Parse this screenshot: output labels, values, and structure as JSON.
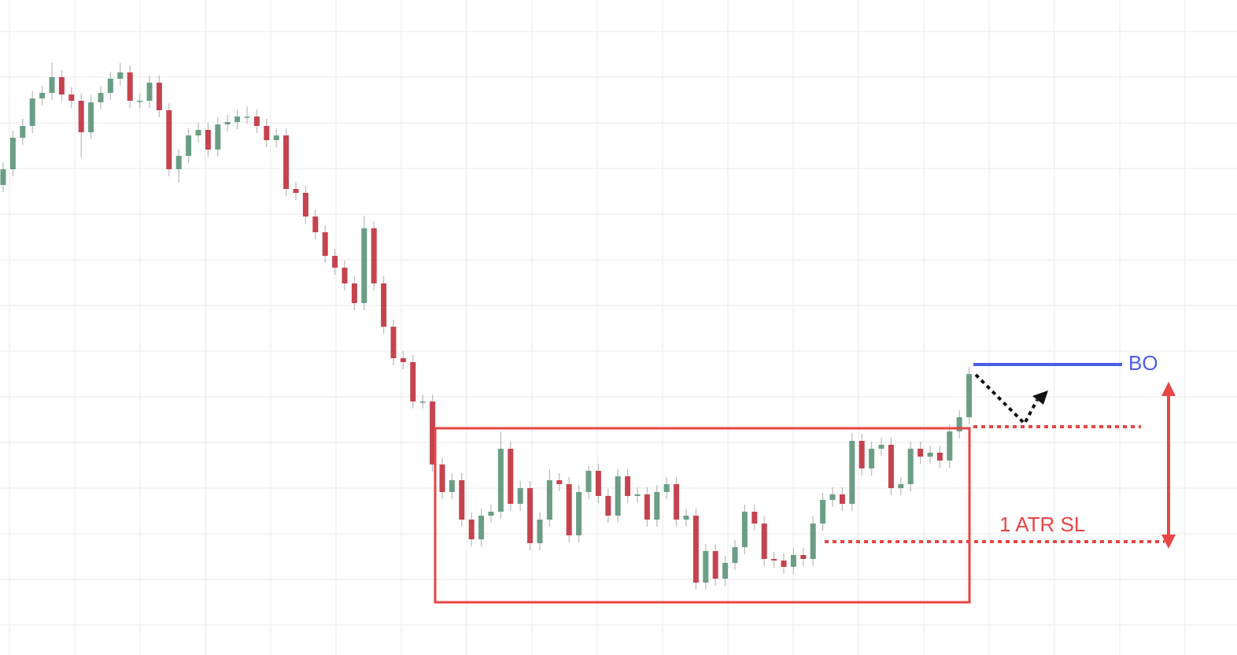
{
  "chart_data": {
    "type": "candlestick",
    "ylim": [
      0,
      832
    ],
    "grid": true,
    "up_color": "#6b9e85",
    "down_color": "#c5434f",
    "open": [
      597,
      617,
      657,
      672,
      707,
      714,
      734,
      712,
      704,
      664,
      702,
      714,
      732,
      740,
      704,
      704,
      727,
      692,
      617,
      634,
      660,
      667,
      642,
      674,
      677,
      684,
      684,
      672,
      654,
      660,
      592,
      587,
      557,
      537,
      507,
      492,
      472,
      447,
      542,
      472,
      417,
      377,
      372,
      322,
      322,
      242,
      207,
      222,
      172,
      147,
      177,
      182,
      262,
      192,
      212,
      142,
      172,
      222,
      217,
      152,
      207,
      234,
      202,
      177,
      227,
      202,
      204,
      172,
      207,
      217,
      172,
      177,
      92,
      132,
      97,
      117,
      137,
      182,
      167,
      122,
      120,
      112,
      127,
      122,
      167,
      197,
      204,
      192,
      272,
      237,
      262,
      267,
      212,
      217,
      262,
      252,
      257,
      247,
      284,
      302
    ],
    "high": [
      626,
      666,
      681,
      716,
      723,
      752,
      743,
      721,
      713,
      711,
      723,
      741,
      752,
      749,
      713,
      736,
      736,
      701,
      643,
      669,
      676,
      676,
      683,
      686,
      693,
      697,
      693,
      681,
      669,
      669,
      601,
      596,
      566,
      546,
      516,
      501,
      481,
      558,
      551,
      481,
      426,
      386,
      381,
      331,
      331,
      251,
      231,
      231,
      181,
      186,
      191,
      284,
      271,
      221,
      221,
      181,
      236,
      231,
      226,
      216,
      240,
      243,
      211,
      236,
      236,
      213,
      213,
      216,
      226,
      226,
      186,
      186,
      141,
      141,
      126,
      146,
      191,
      191,
      176,
      131,
      129,
      136,
      136,
      176,
      206,
      213,
      213,
      282,
      281,
      271,
      276,
      276,
      226,
      271,
      271,
      266,
      266,
      293,
      311,
      366
    ],
    "low": [
      588,
      608,
      648,
      663,
      698,
      705,
      703,
      695,
      632,
      655,
      693,
      705,
      723,
      695,
      695,
      695,
      683,
      608,
      600,
      625,
      651,
      633,
      633,
      665,
      668,
      675,
      663,
      645,
      645,
      583,
      578,
      548,
      528,
      498,
      483,
      463,
      438,
      438,
      463,
      408,
      368,
      363,
      313,
      313,
      233,
      198,
      198,
      163,
      138,
      138,
      168,
      173,
      183,
      183,
      133,
      133,
      163,
      208,
      143,
      143,
      198,
      193,
      168,
      168,
      193,
      193,
      163,
      163,
      198,
      163,
      163,
      83,
      83,
      88,
      88,
      108,
      128,
      158,
      113,
      111,
      103,
      103,
      113,
      113,
      158,
      188,
      183,
      183,
      228,
      228,
      253,
      203,
      203,
      208,
      243,
      243,
      238,
      238,
      275,
      293
    ],
    "close": [
      617,
      657,
      672,
      707,
      714,
      734,
      712,
      704,
      664,
      702,
      714,
      732,
      740,
      704,
      704,
      727,
      692,
      617,
      634,
      660,
      667,
      642,
      674,
      677,
      684,
      684,
      672,
      654,
      660,
      592,
      587,
      557,
      537,
      507,
      492,
      472,
      447,
      542,
      472,
      417,
      377,
      372,
      322,
      322,
      242,
      207,
      222,
      172,
      147,
      177,
      182,
      262,
      192,
      212,
      142,
      172,
      222,
      217,
      152,
      207,
      234,
      202,
      177,
      227,
      202,
      204,
      172,
      207,
      217,
      172,
      177,
      92,
      132,
      97,
      117,
      137,
      182,
      167,
      122,
      120,
      112,
      127,
      122,
      167,
      197,
      204,
      192,
      272,
      237,
      262,
      267,
      212,
      217,
      262,
      252,
      257,
      247,
      284,
      302,
      357
    ],
    "annotations": {
      "breakout": "BO",
      "stop": "1 ATR SL"
    }
  }
}
